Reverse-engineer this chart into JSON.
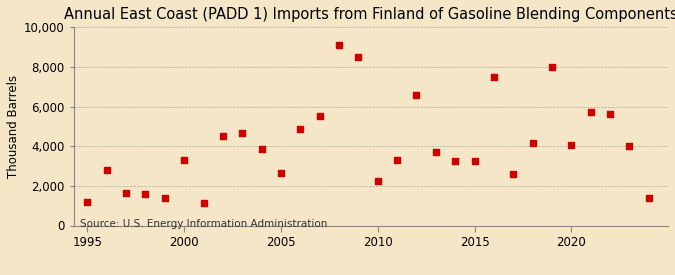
{
  "title": "Annual East Coast (PADD 1) Imports from Finland of Gasoline Blending Components",
  "ylabel": "Thousand Barrels",
  "source": "Source: U.S. Energy Information Administration",
  "background_color": "#f5e6c8",
  "marker_color": "#cc0000",
  "years": [
    1995,
    1996,
    1997,
    1998,
    1999,
    2000,
    2001,
    2002,
    2003,
    2004,
    2005,
    2006,
    2007,
    2008,
    2009,
    2010,
    2011,
    2012,
    2013,
    2014,
    2015,
    2016,
    2017,
    2018,
    2019,
    2020,
    2021,
    2022,
    2023,
    2024
  ],
  "values": [
    1200,
    2800,
    1650,
    1600,
    1400,
    3300,
    1150,
    4500,
    4650,
    3850,
    2650,
    4850,
    5500,
    9100,
    8500,
    2250,
    3300,
    6600,
    3700,
    3250,
    3250,
    7500,
    2600,
    4150,
    8000,
    4050,
    5750,
    5600,
    4000,
    1400
  ],
  "ylim": [
    0,
    10000
  ],
  "ytick_step": 2000,
  "xlim": [
    1994.3,
    2025
  ],
  "xticks": [
    1995,
    2000,
    2005,
    2010,
    2015,
    2020
  ],
  "title_fontsize": 10.5,
  "axis_fontsize": 8.5,
  "source_fontsize": 7.5,
  "marker_size": 18
}
